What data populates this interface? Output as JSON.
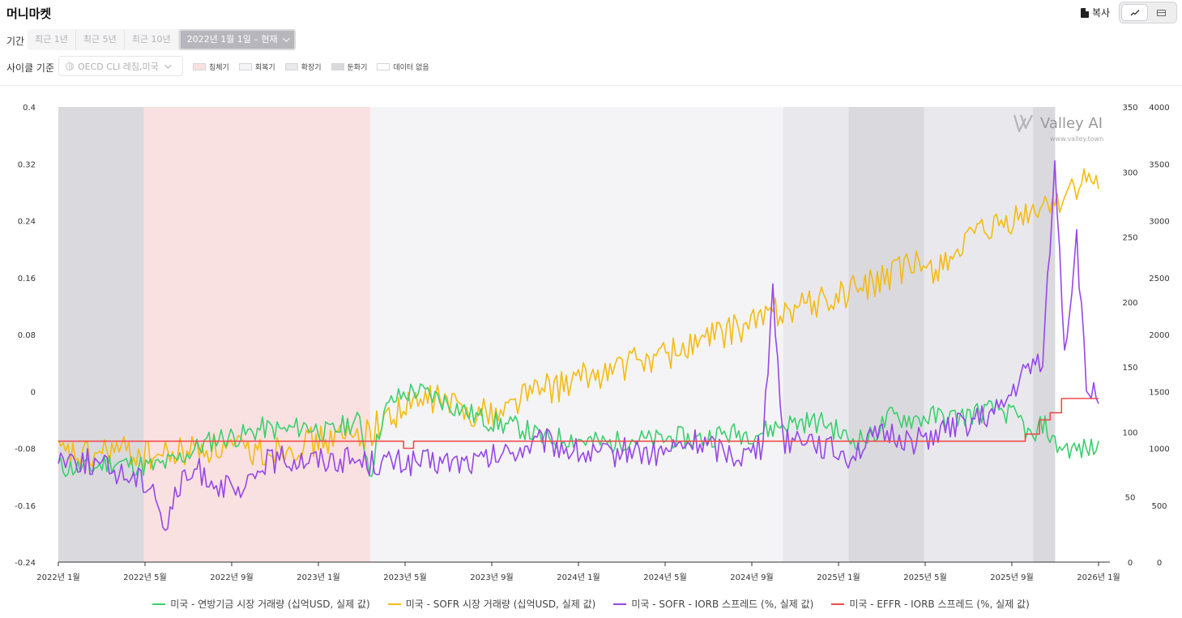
{
  "header": {
    "title": "머니마켓",
    "copy_label": "복사"
  },
  "view_toggle": [
    {
      "name": "line-view",
      "icon": "line-chart-icon",
      "active": true
    },
    {
      "name": "table-view",
      "icon": "table-icon",
      "active": false
    }
  ],
  "period": {
    "label": "기간",
    "options": [
      "최근 1년",
      "최근 5년",
      "최근 10년"
    ],
    "selected": "2022년 1월 1일 – 현재"
  },
  "cycle": {
    "label": "사이클 기준",
    "placeholder": "OECD CLI 레짐,미국",
    "phases": [
      {
        "label": "침체기",
        "color": "#f9e1e1"
      },
      {
        "label": "회복기",
        "color": "#f4f4f6"
      },
      {
        "label": "확장기",
        "color": "#e9e9ed"
      },
      {
        "label": "둔화기",
        "color": "#d9d9de"
      },
      {
        "label": "데이터 없음",
        "color": "#ffffff"
      }
    ]
  },
  "watermark": {
    "brand": "Valley AI",
    "url": "www.valley.town"
  },
  "chart_data": {
    "type": "line",
    "x_start": "2022-01-01",
    "x_end": "2026-01-01",
    "x_ticks": [
      "2022년 1월",
      "2022년 5월",
      "2022년 9월",
      "2023년 1월",
      "2023년 5월",
      "2023년 9월",
      "2024년 1월",
      "2024년 5월",
      "2024년 9월",
      "2025년 1월",
      "2025년 5월",
      "2025년 9월",
      "2026년 1월"
    ],
    "axes": {
      "left": {
        "min": -0.24,
        "max": 0.4,
        "ticks": [
          "0.4",
          "0.32",
          "0.24",
          "0.16",
          "0.08",
          "0",
          "-0.08",
          "-0.16",
          "-0.24"
        ]
      },
      "right1": {
        "min": 0,
        "max": 350,
        "ticks": [
          "350",
          "300",
          "250",
          "200",
          "150",
          "100",
          "50",
          "0"
        ]
      },
      "right2": {
        "min": 0,
        "max": 4000,
        "ticks": [
          "4000",
          "3500",
          "3000",
          "2500",
          "2000",
          "1500",
          "1000",
          "500",
          "0"
        ]
      }
    },
    "regimes": [
      {
        "phase": "둔화기",
        "start": "2022-01-01",
        "end": "2022-05-01"
      },
      {
        "phase": "침체기",
        "start": "2022-05-01",
        "end": "2023-03-15"
      },
      {
        "phase": "회복기",
        "start": "2023-03-15",
        "end": "2024-10-15"
      },
      {
        "phase": "확장기",
        "start": "2024-10-15",
        "end": "2025-01-15"
      },
      {
        "phase": "둔화기",
        "start": "2025-01-15",
        "end": "2025-05-01"
      },
      {
        "phase": "확장기",
        "start": "2025-05-01",
        "end": "2025-10-01"
      },
      {
        "phase": "둔화기",
        "start": "2025-10-01",
        "end": "2025-11-01"
      }
    ],
    "series": [
      {
        "name": "미국 - 연방기금 시장 거래량 (십억USD, 실제 값)",
        "color": "#3ccf6e",
        "axis": "right1",
        "points": [
          [
            "2022-01-01",
            73
          ],
          [
            "2022-02-15",
            72
          ],
          [
            "2022-03-15",
            77
          ],
          [
            "2022-04-15",
            75
          ],
          [
            "2022-05-15",
            73
          ],
          [
            "2022-06-15",
            78
          ],
          [
            "2022-07-15",
            88
          ],
          [
            "2022-08-15",
            96
          ],
          [
            "2022-09-15",
            97
          ],
          [
            "2022-10-15",
            103
          ],
          [
            "2022-11-15",
            101
          ],
          [
            "2022-12-15",
            105
          ],
          [
            "2023-01-15",
            99
          ],
          [
            "2023-02-15",
            107
          ],
          [
            "2023-03-01",
            108
          ],
          [
            "2023-03-15",
            67
          ],
          [
            "2023-04-01",
            112
          ],
          [
            "2023-04-15",
            124
          ],
          [
            "2023-05-15",
            132
          ],
          [
            "2023-06-15",
            127
          ],
          [
            "2023-07-15",
            119
          ],
          [
            "2023-08-15",
            111
          ],
          [
            "2023-09-15",
            106
          ],
          [
            "2023-10-15",
            103
          ],
          [
            "2023-11-15",
            94
          ],
          [
            "2023-12-15",
            96
          ],
          [
            "2024-01-15",
            93
          ],
          [
            "2024-02-15",
            91
          ],
          [
            "2024-03-15",
            95
          ],
          [
            "2024-04-15",
            93
          ],
          [
            "2024-05-15",
            96
          ],
          [
            "2024-06-15",
            94
          ],
          [
            "2024-07-15",
            98
          ],
          [
            "2024-08-15",
            99
          ],
          [
            "2024-09-15",
            100
          ],
          [
            "2024-10-15",
            106
          ],
          [
            "2024-11-15",
            108
          ],
          [
            "2024-12-15",
            107
          ],
          [
            "2025-01-15",
            94
          ],
          [
            "2025-02-15",
            96
          ],
          [
            "2025-03-15",
            112
          ],
          [
            "2025-04-15",
            110
          ],
          [
            "2025-05-15",
            112
          ],
          [
            "2025-06-15",
            111
          ],
          [
            "2025-07-15",
            115
          ],
          [
            "2025-08-15",
            118
          ],
          [
            "2025-09-15",
            108
          ],
          [
            "2025-10-01",
            92
          ],
          [
            "2025-10-15",
            108
          ],
          [
            "2025-11-01",
            90
          ],
          [
            "2025-12-01",
            86
          ],
          [
            "2026-01-01",
            88
          ]
        ]
      },
      {
        "name": "미국 - SOFR 시장 거래량 (십억USD, 실제 값)",
        "color": "#f5bb0f",
        "axis": "right2",
        "points": [
          [
            "2022-01-01",
            950
          ],
          [
            "2022-02-15",
            920
          ],
          [
            "2022-03-15",
            990
          ],
          [
            "2022-04-15",
            960
          ],
          [
            "2022-05-15",
            930
          ],
          [
            "2022-06-15",
            950
          ],
          [
            "2022-07-15",
            1010
          ],
          [
            "2022-08-15",
            1000
          ],
          [
            "2022-09-15",
            980
          ],
          [
            "2022-10-15",
            970
          ],
          [
            "2022-11-15",
            1020
          ],
          [
            "2022-12-15",
            1040
          ],
          [
            "2023-01-15",
            1080
          ],
          [
            "2023-02-15",
            1100
          ],
          [
            "2023-03-15",
            1150
          ],
          [
            "2023-04-15",
            1300
          ],
          [
            "2023-05-15",
            1380
          ],
          [
            "2023-06-15",
            1450
          ],
          [
            "2023-07-15",
            1360
          ],
          [
            "2023-08-15",
            1320
          ],
          [
            "2023-09-15",
            1310
          ],
          [
            "2023-10-15",
            1480
          ],
          [
            "2023-11-15",
            1520
          ],
          [
            "2023-12-15",
            1560
          ],
          [
            "2024-01-15",
            1630
          ],
          [
            "2024-02-15",
            1680
          ],
          [
            "2024-03-15",
            1750
          ],
          [
            "2024-04-15",
            1800
          ],
          [
            "2024-05-15",
            1850
          ],
          [
            "2024-06-15",
            1920
          ],
          [
            "2024-07-15",
            2000
          ],
          [
            "2024-08-15",
            2050
          ],
          [
            "2024-09-15",
            2150
          ],
          [
            "2024-10-15",
            2230
          ],
          [
            "2024-11-15",
            2260
          ],
          [
            "2024-12-15",
            2290
          ],
          [
            "2025-01-15",
            2380
          ],
          [
            "2025-02-15",
            2440
          ],
          [
            "2025-03-15",
            2520
          ],
          [
            "2025-04-15",
            2600
          ],
          [
            "2025-05-15",
            2580
          ],
          [
            "2025-06-15",
            2730
          ],
          [
            "2025-07-15",
            2860
          ],
          [
            "2025-08-15",
            2940
          ],
          [
            "2025-09-15",
            3020
          ],
          [
            "2025-10-15",
            3120
          ],
          [
            "2025-11-15",
            3230
          ],
          [
            "2025-12-15",
            3340
          ],
          [
            "2026-01-01",
            3300
          ]
        ]
      },
      {
        "name": "미국 - SOFR - IORB 스프레드 (%, 실제 값)",
        "color": "#9747e8",
        "axis": "left",
        "points": [
          [
            "2022-01-01",
            -0.09
          ],
          [
            "2022-02-15",
            -0.1
          ],
          [
            "2022-03-15",
            -0.11
          ],
          [
            "2022-04-15",
            -0.12
          ],
          [
            "2022-05-15",
            -0.13
          ],
          [
            "2022-06-01",
            -0.2
          ],
          [
            "2022-06-15",
            -0.14
          ],
          [
            "2022-07-15",
            -0.11
          ],
          [
            "2022-08-15",
            -0.13
          ],
          [
            "2022-09-15",
            -0.15
          ],
          [
            "2022-10-15",
            -0.1
          ],
          [
            "2022-11-15",
            -0.095
          ],
          [
            "2022-12-15",
            -0.095
          ],
          [
            "2023-01-15",
            -0.095
          ],
          [
            "2023-02-15",
            -0.095
          ],
          [
            "2023-03-15",
            -0.1
          ],
          [
            "2023-04-15",
            -0.1
          ],
          [
            "2023-05-15",
            -0.1
          ],
          [
            "2023-06-15",
            -0.1
          ],
          [
            "2023-07-15",
            -0.1
          ],
          [
            "2023-08-15",
            -0.1
          ],
          [
            "2023-09-15",
            -0.09
          ],
          [
            "2023-10-15",
            -0.08
          ],
          [
            "2023-11-15",
            -0.07
          ],
          [
            "2023-12-15",
            -0.08
          ],
          [
            "2024-01-15",
            -0.09
          ],
          [
            "2024-02-15",
            -0.09
          ],
          [
            "2024-03-15",
            -0.08
          ],
          [
            "2024-04-15",
            -0.09
          ],
          [
            "2024-05-15",
            -0.08
          ],
          [
            "2024-06-15",
            -0.07
          ],
          [
            "2024-07-15",
            -0.08
          ],
          [
            "2024-08-15",
            -0.09
          ],
          [
            "2024-09-15",
            -0.08
          ],
          [
            "2024-10-01",
            0.14
          ],
          [
            "2024-10-15",
            -0.07
          ],
          [
            "2024-11-15",
            -0.06
          ],
          [
            "2024-12-15",
            -0.08
          ],
          [
            "2025-01-15",
            -0.09
          ],
          [
            "2025-02-15",
            -0.07
          ],
          [
            "2025-03-15",
            -0.06
          ],
          [
            "2025-04-15",
            -0.07
          ],
          [
            "2025-05-15",
            -0.06
          ],
          [
            "2025-06-15",
            -0.05
          ],
          [
            "2025-07-15",
            -0.04
          ],
          [
            "2025-08-15",
            -0.03
          ],
          [
            "2025-09-15",
            0.02
          ],
          [
            "2025-10-15",
            0.05
          ],
          [
            "2025-11-01",
            0.32
          ],
          [
            "2025-11-15",
            0.05
          ],
          [
            "2025-12-01",
            0.22
          ],
          [
            "2025-12-15",
            0.0
          ],
          [
            "2026-01-01",
            0.0
          ]
        ]
      },
      {
        "name": "미국 - EFFR - IORB 스프레드 (%, 실제 값)",
        "color": "#f04b4b",
        "axis": "left",
        "points": [
          [
            "2022-01-01",
            -0.07
          ],
          [
            "2023-04-15",
            -0.07
          ],
          [
            "2023-05-01",
            -0.08
          ],
          [
            "2023-05-15",
            -0.07
          ],
          [
            "2025-09-01",
            -0.07
          ],
          [
            "2025-09-20",
            -0.06
          ],
          [
            "2025-10-10",
            -0.04
          ],
          [
            "2025-10-25",
            -0.03
          ],
          [
            "2025-11-10",
            -0.01
          ],
          [
            "2026-01-01",
            -0.01
          ]
        ]
      }
    ]
  }
}
